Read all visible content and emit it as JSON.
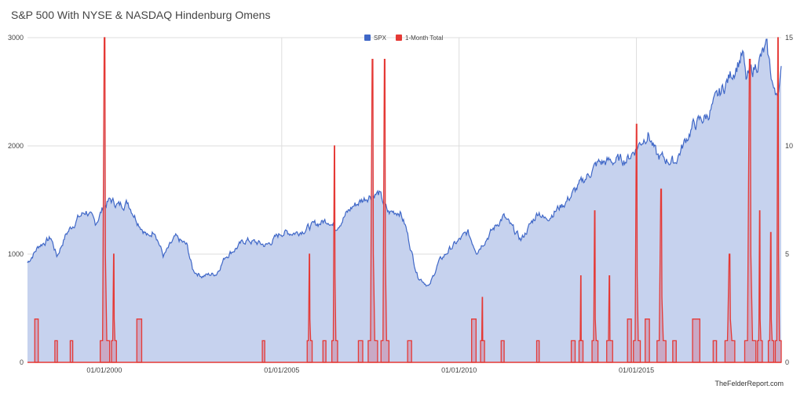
{
  "title": "S&P 500 With NYSE & NASDAQ Hindenburg Omens",
  "source": "TheFelderReport.com",
  "chart_data": {
    "type": "line",
    "x_range": [
      "1997-11-01",
      "2019-01-31"
    ],
    "x_ticks": [
      {
        "date": "2000-01-01",
        "label": "01/01/2000"
      },
      {
        "date": "2005-01-01",
        "label": "01/01/2005"
      },
      {
        "date": "2010-01-01",
        "label": "01/01/2010"
      },
      {
        "date": "2015-01-01",
        "label": "01/01/2015"
      }
    ],
    "y_left": {
      "min": 0,
      "max": 3000,
      "ticks": [
        0,
        1000,
        2000,
        3000
      ]
    },
    "y_right": {
      "min": 0,
      "max": 15,
      "ticks": [
        0,
        5,
        10,
        15
      ]
    },
    "grid": true,
    "legend_position": "top-center",
    "series": [
      {
        "name": "SPX",
        "axis": "left",
        "style": "area",
        "color": "#3f67c7",
        "fill": "#c6d2ee",
        "points": [
          [
            "1997-11-01",
            920
          ],
          [
            "1998-03-01",
            1080
          ],
          [
            "1998-07-01",
            1150
          ],
          [
            "1998-09-01",
            980
          ],
          [
            "1998-12-01",
            1180
          ],
          [
            "1999-04-01",
            1330
          ],
          [
            "1999-07-01",
            1400
          ],
          [
            "1999-10-01",
            1280
          ],
          [
            "2000-01-01",
            1450
          ],
          [
            "2000-03-01",
            1500
          ],
          [
            "2000-06-01",
            1450
          ],
          [
            "2000-09-01",
            1480
          ],
          [
            "2000-12-01",
            1320
          ],
          [
            "2001-04-01",
            1150
          ],
          [
            "2001-06-01",
            1230
          ],
          [
            "2001-09-01",
            980
          ],
          [
            "2002-01-01",
            1150
          ],
          [
            "2002-05-01",
            1080
          ],
          [
            "2002-07-01",
            850
          ],
          [
            "2002-10-01",
            800
          ],
          [
            "2003-03-01",
            820
          ],
          [
            "2003-06-01",
            980
          ],
          [
            "2004-01-01",
            1130
          ],
          [
            "2004-08-01",
            1080
          ],
          [
            "2005-01-01",
            1200
          ],
          [
            "2005-06-01",
            1200
          ],
          [
            "2006-01-01",
            1280
          ],
          [
            "2006-05-01",
            1320
          ],
          [
            "2006-07-01",
            1240
          ],
          [
            "2007-01-01",
            1440
          ],
          [
            "2007-07-01",
            1550
          ],
          [
            "2007-10-01",
            1560
          ],
          [
            "2008-01-01",
            1380
          ],
          [
            "2008-05-01",
            1400
          ],
          [
            "2008-07-01",
            1250
          ],
          [
            "2008-10-01",
            900
          ],
          [
            "2008-11-01",
            800
          ],
          [
            "2009-03-01",
            700
          ],
          [
            "2009-06-01",
            920
          ],
          [
            "2009-10-01",
            1050
          ],
          [
            "2010-04-01",
            1200
          ],
          [
            "2010-07-01",
            1030
          ],
          [
            "2011-04-01",
            1350
          ],
          [
            "2011-10-01",
            1130
          ],
          [
            "2012-04-01",
            1400
          ],
          [
            "2012-06-01",
            1320
          ],
          [
            "2013-01-01",
            1480
          ],
          [
            "2013-12-01",
            1840
          ],
          [
            "2014-10-01",
            1880
          ],
          [
            "2015-05-01",
            2120
          ],
          [
            "2015-08-01",
            1900
          ],
          [
            "2016-02-01",
            1850
          ],
          [
            "2016-08-01",
            2180
          ],
          [
            "2017-01-01",
            2280
          ],
          [
            "2018-01-01",
            2850
          ],
          [
            "2018-02-01",
            2600
          ],
          [
            "2018-09-01",
            2900
          ],
          [
            "2018-12-01",
            2450
          ],
          [
            "2019-01-31",
            2680
          ]
        ]
      },
      {
        "name": "1-Month Total",
        "axis": "right",
        "style": "area",
        "color": "#e53935",
        "fill": "#c9a2bd",
        "spikes": [
          {
            "start": "1998-01-15",
            "end": "1998-02-20",
            "peak": 2
          },
          {
            "start": "1998-08-10",
            "end": "1998-09-05",
            "peak": 1
          },
          {
            "start": "1999-01-15",
            "end": "1999-02-10",
            "peak": 1
          },
          {
            "start": "1999-11-20",
            "end": "2000-02-25",
            "peak": 15
          },
          {
            "start": "2000-03-15",
            "end": "2000-05-05",
            "peak": 5
          },
          {
            "start": "2000-12-01",
            "end": "2001-01-20",
            "peak": 2
          },
          {
            "start": "2004-06-15",
            "end": "2004-07-10",
            "peak": 1
          },
          {
            "start": "2005-09-20",
            "end": "2005-11-10",
            "peak": 5
          },
          {
            "start": "2006-03-01",
            "end": "2006-04-01",
            "peak": 1
          },
          {
            "start": "2006-06-01",
            "end": "2006-07-30",
            "peak": 10
          },
          {
            "start": "2007-03-01",
            "end": "2007-04-15",
            "peak": 1
          },
          {
            "start": "2007-06-10",
            "end": "2007-09-15",
            "peak": 14
          },
          {
            "start": "2007-10-20",
            "end": "2008-01-10",
            "peak": 14
          },
          {
            "start": "2008-07-20",
            "end": "2008-08-30",
            "peak": 1
          },
          {
            "start": "2010-05-10",
            "end": "2010-06-25",
            "peak": 2
          },
          {
            "start": "2010-08-10",
            "end": "2010-09-20",
            "peak": 3
          },
          {
            "start": "2011-03-10",
            "end": "2011-04-10",
            "peak": 1
          },
          {
            "start": "2012-03-10",
            "end": "2012-04-05",
            "peak": 1
          },
          {
            "start": "2013-03-01",
            "end": "2013-04-10",
            "peak": 1
          },
          {
            "start": "2013-05-20",
            "end": "2013-06-30",
            "peak": 4
          },
          {
            "start": "2013-10-01",
            "end": "2013-12-01",
            "peak": 7
          },
          {
            "start": "2014-03-01",
            "end": "2014-05-01",
            "peak": 4
          },
          {
            "start": "2014-10-01",
            "end": "2014-11-10",
            "peak": 2
          },
          {
            "start": "2014-12-01",
            "end": "2015-02-10",
            "peak": 11
          },
          {
            "start": "2015-04-01",
            "end": "2015-05-15",
            "peak": 2
          },
          {
            "start": "2015-08-01",
            "end": "2015-11-01",
            "peak": 8
          },
          {
            "start": "2016-01-10",
            "end": "2016-02-15",
            "peak": 1
          },
          {
            "start": "2016-08-01",
            "end": "2016-10-15",
            "peak": 2
          },
          {
            "start": "2017-03-01",
            "end": "2017-04-05",
            "peak": 1
          },
          {
            "start": "2017-07-01",
            "end": "2017-10-10",
            "peak": 5
          },
          {
            "start": "2018-01-20",
            "end": "2018-05-15",
            "peak": 14
          },
          {
            "start": "2018-06-01",
            "end": "2018-07-20",
            "peak": 7
          },
          {
            "start": "2018-09-20",
            "end": "2018-11-15",
            "peak": 6
          },
          {
            "start": "2018-12-01",
            "end": "2019-01-31",
            "peak": 15
          }
        ]
      }
    ]
  }
}
